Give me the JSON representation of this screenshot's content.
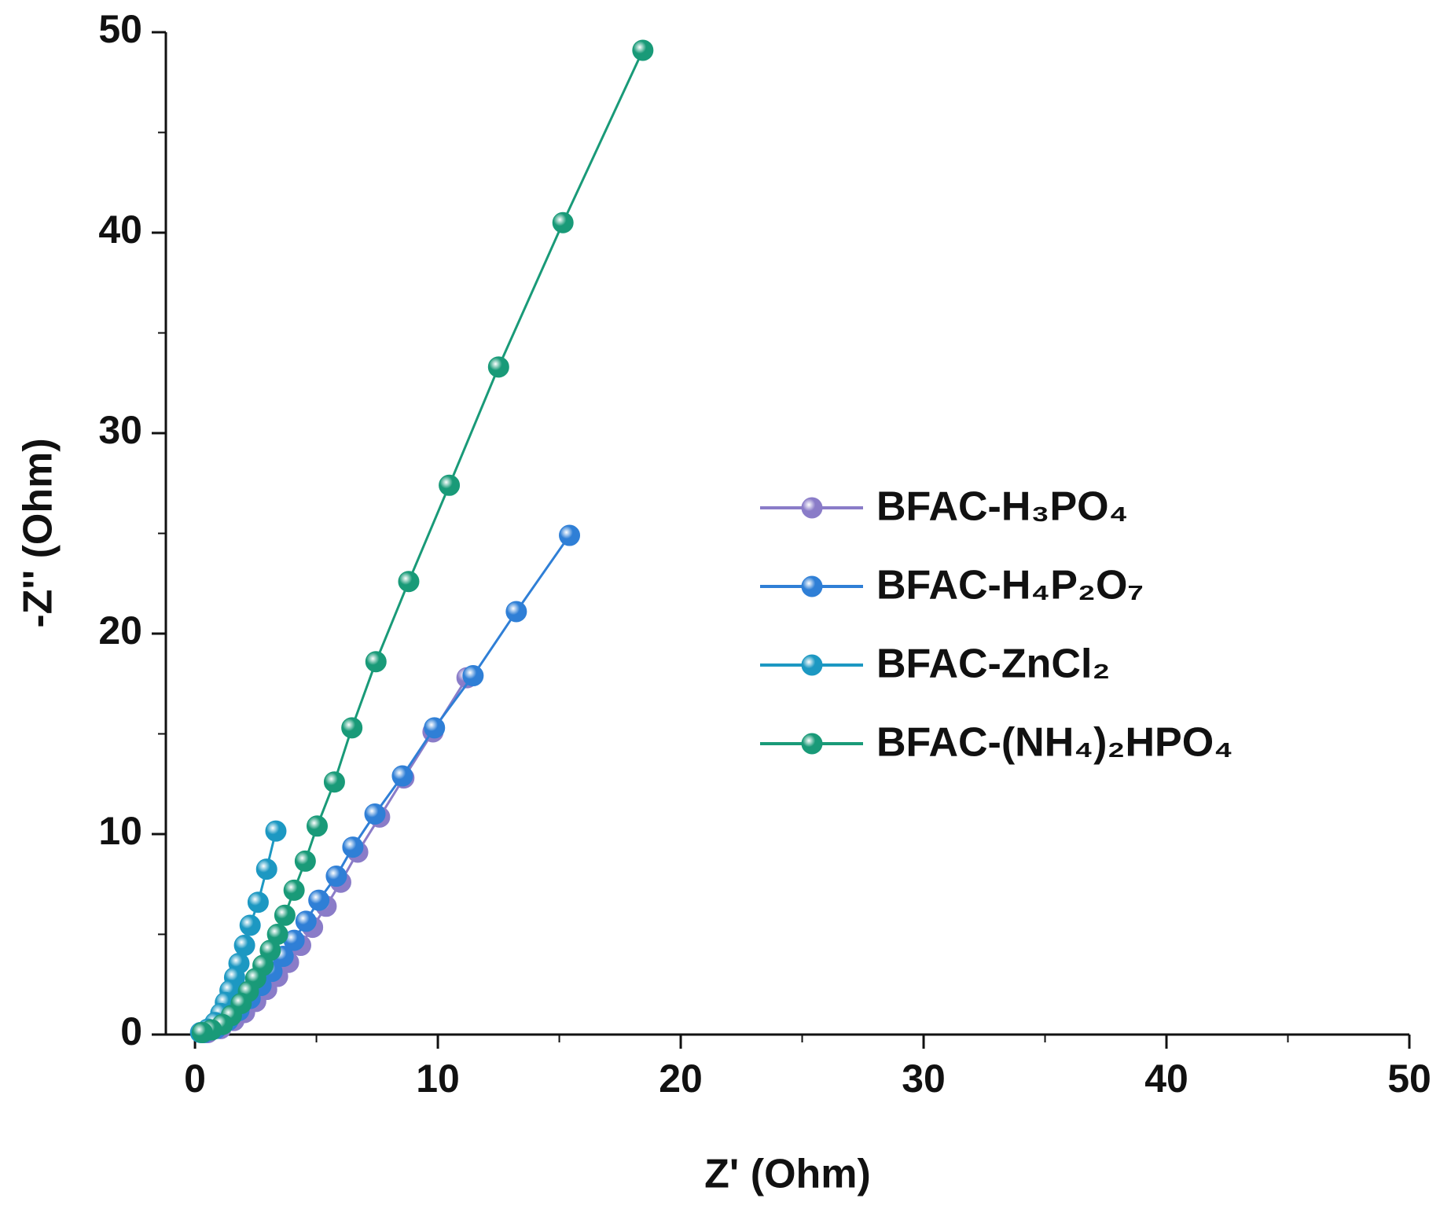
{
  "chart_data": {
    "type": "line",
    "x_label": "Z' (Ohm)",
    "y_label": "-Z'' (Ohm)",
    "xlim": [
      -1.2,
      50
    ],
    "ylim": [
      0,
      50
    ],
    "xticks": [
      0,
      10,
      20,
      30,
      40,
      50
    ],
    "yticks": [
      0,
      10,
      20,
      30,
      40,
      50
    ],
    "legend": "center right",
    "series": [
      {
        "name": "BFAC-H₃PO₄",
        "color": "#8a7cc8",
        "x": [
          11.2,
          9.8,
          8.6,
          7.6,
          6.7,
          6.0,
          5.4,
          4.84,
          4.35,
          3.85,
          3.4,
          2.95,
          2.5,
          2.04,
          1.6,
          1.06,
          0.53
        ],
        "values": [
          17.8,
          15.1,
          12.8,
          10.85,
          9.1,
          7.6,
          6.4,
          5.35,
          4.45,
          3.6,
          2.9,
          2.25,
          1.65,
          1.1,
          0.7,
          0.3,
          0.1
        ]
      },
      {
        "name": "BFAC-H₄P₂O₇",
        "color": "#2f7fd6",
        "x": [
          15.42,
          13.23,
          11.45,
          9.86,
          8.54,
          7.41,
          6.5,
          5.82,
          5.1,
          4.57,
          4.08,
          3.63,
          3.17,
          2.72,
          2.27,
          1.81,
          1.36,
          0.87,
          0.38
        ],
        "values": [
          24.9,
          21.1,
          17.9,
          15.3,
          12.9,
          11.0,
          9.35,
          7.9,
          6.7,
          5.65,
          4.7,
          3.9,
          3.15,
          2.45,
          1.8,
          1.2,
          0.7,
          0.3,
          0.1
        ]
      },
      {
        "name": "BFAC-ZnCl₂",
        "color": "#1c98c2",
        "x": [
          3.33,
          2.95,
          2.6,
          2.27,
          2.04,
          1.81,
          1.63,
          1.44,
          1.25,
          1.06,
          0.83,
          0.53,
          0.23
        ],
        "values": [
          10.15,
          8.25,
          6.6,
          5.45,
          4.45,
          3.55,
          2.85,
          2.2,
          1.6,
          1.05,
          0.6,
          0.27,
          0.1
        ]
      },
      {
        "name": "BFAC-(NH₄)₂HPO₄",
        "color": "#199a78",
        "x": [
          18.44,
          15.15,
          12.5,
          10.47,
          8.8,
          7.45,
          6.46,
          5.74,
          5.03,
          4.54,
          4.08,
          3.7,
          3.4,
          3.1,
          2.8,
          2.5,
          2.2,
          1.9,
          1.5,
          1.13,
          0.68,
          0.3
        ],
        "values": [
          49.1,
          40.5,
          33.3,
          27.4,
          22.6,
          18.6,
          15.3,
          12.6,
          10.4,
          8.65,
          7.2,
          5.95,
          5.0,
          4.2,
          3.45,
          2.8,
          2.15,
          1.55,
          0.95,
          0.5,
          0.23,
          0.1
        ]
      }
    ]
  }
}
